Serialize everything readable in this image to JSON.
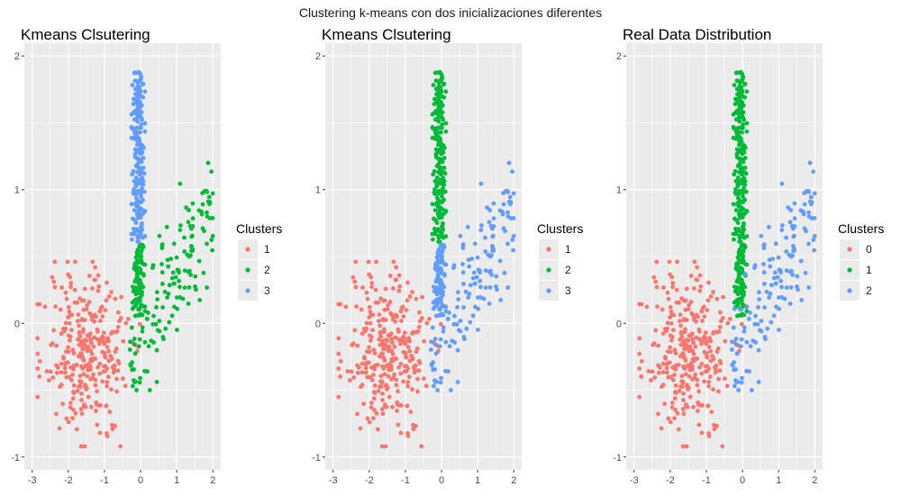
{
  "figure_title": "Clustering k-means con dos inicializaciones diferentes",
  "colors": {
    "red": "#F8766D",
    "green": "#00BA38",
    "blue": "#619CFF",
    "panel_bg": "#EBEBEB",
    "grid": "#FFFFFF",
    "text": "#4D4D4D"
  },
  "chart_data": [
    {
      "type": "scatter",
      "title": "Kmeans Clsutering",
      "xlabel": "",
      "ylabel": "",
      "xlim": [
        -3,
        2
      ],
      "ylim": [
        -1,
        2
      ],
      "xticks": [
        -3,
        -2,
        -1,
        0,
        1,
        2
      ],
      "yticks": [
        -1,
        0,
        1,
        2
      ],
      "grid": true,
      "legend_title": "Clusters",
      "legend_position": "right",
      "legend_labels": [
        "1",
        "2",
        "3"
      ],
      "legend_colors": [
        "#F8766D",
        "#00BA38",
        "#619CFF"
      ],
      "groups": {
        "blob": 0,
        "low_stem": 1,
        "high_stem": 2,
        "arm": 1
      }
    },
    {
      "type": "scatter",
      "title": "Kmeans Clsutering",
      "xlabel": "",
      "ylabel": "",
      "xlim": [
        -3,
        2
      ],
      "ylim": [
        -1,
        2
      ],
      "xticks": [
        -3,
        -2,
        -1,
        0,
        1,
        2
      ],
      "yticks": [
        -1,
        0,
        1,
        2
      ],
      "grid": true,
      "legend_title": "Clusters",
      "legend_position": "right",
      "legend_labels": [
        "1",
        "2",
        "3"
      ],
      "legend_colors": [
        "#F8766D",
        "#00BA38",
        "#619CFF"
      ],
      "groups": {
        "blob": 0,
        "low_stem": 2,
        "high_stem": 1,
        "arm": 2
      }
    },
    {
      "type": "scatter",
      "title": "Real Data Distribution",
      "xlabel": "",
      "ylabel": "",
      "xlim": [
        -3,
        2
      ],
      "ylim": [
        -1,
        2
      ],
      "xticks": [
        -3,
        -2,
        -1,
        0,
        1,
        2
      ],
      "yticks": [
        -1,
        0,
        1,
        2
      ],
      "grid": true,
      "legend_title": "Clusters",
      "legend_position": "right",
      "legend_labels": [
        "0",
        "1",
        "2"
      ],
      "legend_colors": [
        "#F8766D",
        "#00BA38",
        "#619CFF"
      ],
      "groups": {
        "blob": 0,
        "low_stem": 1,
        "high_stem": 1,
        "arm": 2
      }
    }
  ],
  "point_clouds": {
    "blob": {
      "n": 300,
      "x_range": [
        -2.85,
        0.0
      ],
      "y_range": [
        -0.92,
        0.46
      ]
    },
    "stem": {
      "n": 320,
      "x_range": [
        -0.25,
        0.12
      ],
      "y_range": [
        0.05,
        1.88
      ],
      "split_y": 0.6
    },
    "arm": {
      "n": 150,
      "x_range": [
        -0.3,
        2.0
      ],
      "y_range": [
        -0.5,
        1.2
      ]
    }
  }
}
